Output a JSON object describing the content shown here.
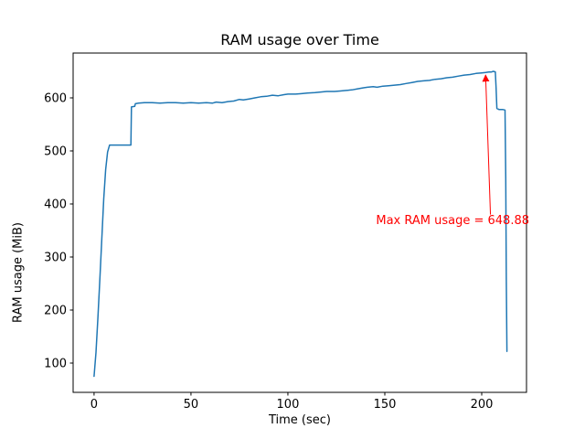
{
  "figure": {
    "background": "#ffffff"
  },
  "chart_data": {
    "type": "line",
    "title": "RAM usage over Time",
    "xlabel": "Time (sec)",
    "ylabel": "RAM usage (MiB)",
    "xlim": [
      -10.8,
      223.1
    ],
    "ylim": [
      44.8,
      684.5
    ],
    "xticks": [
      0,
      50,
      100,
      150,
      200
    ],
    "yticks": [
      100,
      200,
      300,
      400,
      500,
      600
    ],
    "grid": false,
    "legend": "none",
    "line_color": "#1f77b4",
    "max_value": 648.88,
    "points": [
      [
        0,
        75
      ],
      [
        1,
        120
      ],
      [
        2,
        185
      ],
      [
        3,
        260
      ],
      [
        4,
        335
      ],
      [
        5,
        410
      ],
      [
        6,
        465
      ],
      [
        7,
        498
      ],
      [
        8,
        511
      ],
      [
        10,
        511
      ],
      [
        13,
        511
      ],
      [
        16,
        511
      ],
      [
        19,
        511
      ],
      [
        19.3,
        583
      ],
      [
        21,
        584
      ],
      [
        21.3,
        589
      ],
      [
        23,
        590
      ],
      [
        26,
        591
      ],
      [
        30,
        591
      ],
      [
        34,
        590
      ],
      [
        38,
        591
      ],
      [
        42,
        591
      ],
      [
        46,
        590
      ],
      [
        50,
        591
      ],
      [
        54,
        590
      ],
      [
        58,
        591
      ],
      [
        61,
        590
      ],
      [
        63,
        592
      ],
      [
        66,
        591
      ],
      [
        69,
        593
      ],
      [
        72,
        594
      ],
      [
        75,
        597
      ],
      [
        77,
        596
      ],
      [
        80,
        598
      ],
      [
        83,
        600
      ],
      [
        86,
        602
      ],
      [
        89,
        603
      ],
      [
        92,
        605
      ],
      [
        95,
        604
      ],
      [
        98,
        606
      ],
      [
        100,
        607
      ],
      [
        104,
        607
      ],
      [
        107,
        608
      ],
      [
        110,
        609
      ],
      [
        114,
        610
      ],
      [
        117,
        611
      ],
      [
        120,
        612
      ],
      [
        124,
        612
      ],
      [
        127,
        613
      ],
      [
        130,
        614
      ],
      [
        133,
        615
      ],
      [
        136,
        617
      ],
      [
        139,
        619
      ],
      [
        141,
        620
      ],
      [
        144,
        621
      ],
      [
        146,
        620
      ],
      [
        149,
        622
      ],
      [
        152,
        623
      ],
      [
        155,
        624
      ],
      [
        158,
        625
      ],
      [
        161,
        627
      ],
      [
        164,
        629
      ],
      [
        167,
        631
      ],
      [
        170,
        632
      ],
      [
        173,
        633
      ],
      [
        176,
        635
      ],
      [
        179,
        636
      ],
      [
        182,
        638
      ],
      [
        185,
        639
      ],
      [
        188,
        641
      ],
      [
        191,
        643
      ],
      [
        194,
        644
      ],
      [
        197,
        646
      ],
      [
        200,
        647
      ],
      [
        202,
        648
      ],
      [
        204,
        649
      ],
      [
        205,
        648.88
      ],
      [
        206,
        650
      ],
      [
        207,
        649
      ],
      [
        207.4,
        620
      ],
      [
        207.8,
        580
      ],
      [
        209,
        578
      ],
      [
        211,
        578
      ],
      [
        212,
        577
      ],
      [
        212.4,
        450
      ],
      [
        212.7,
        260
      ],
      [
        213,
        122
      ]
    ],
    "annotation": {
      "text": "Max RAM usage = 648.88",
      "color": "#ff0000",
      "text_xy": [
        185,
        362
      ],
      "arrow_tail": [
        204.5,
        380
      ],
      "arrow_tip": [
        202,
        643
      ]
    }
  }
}
